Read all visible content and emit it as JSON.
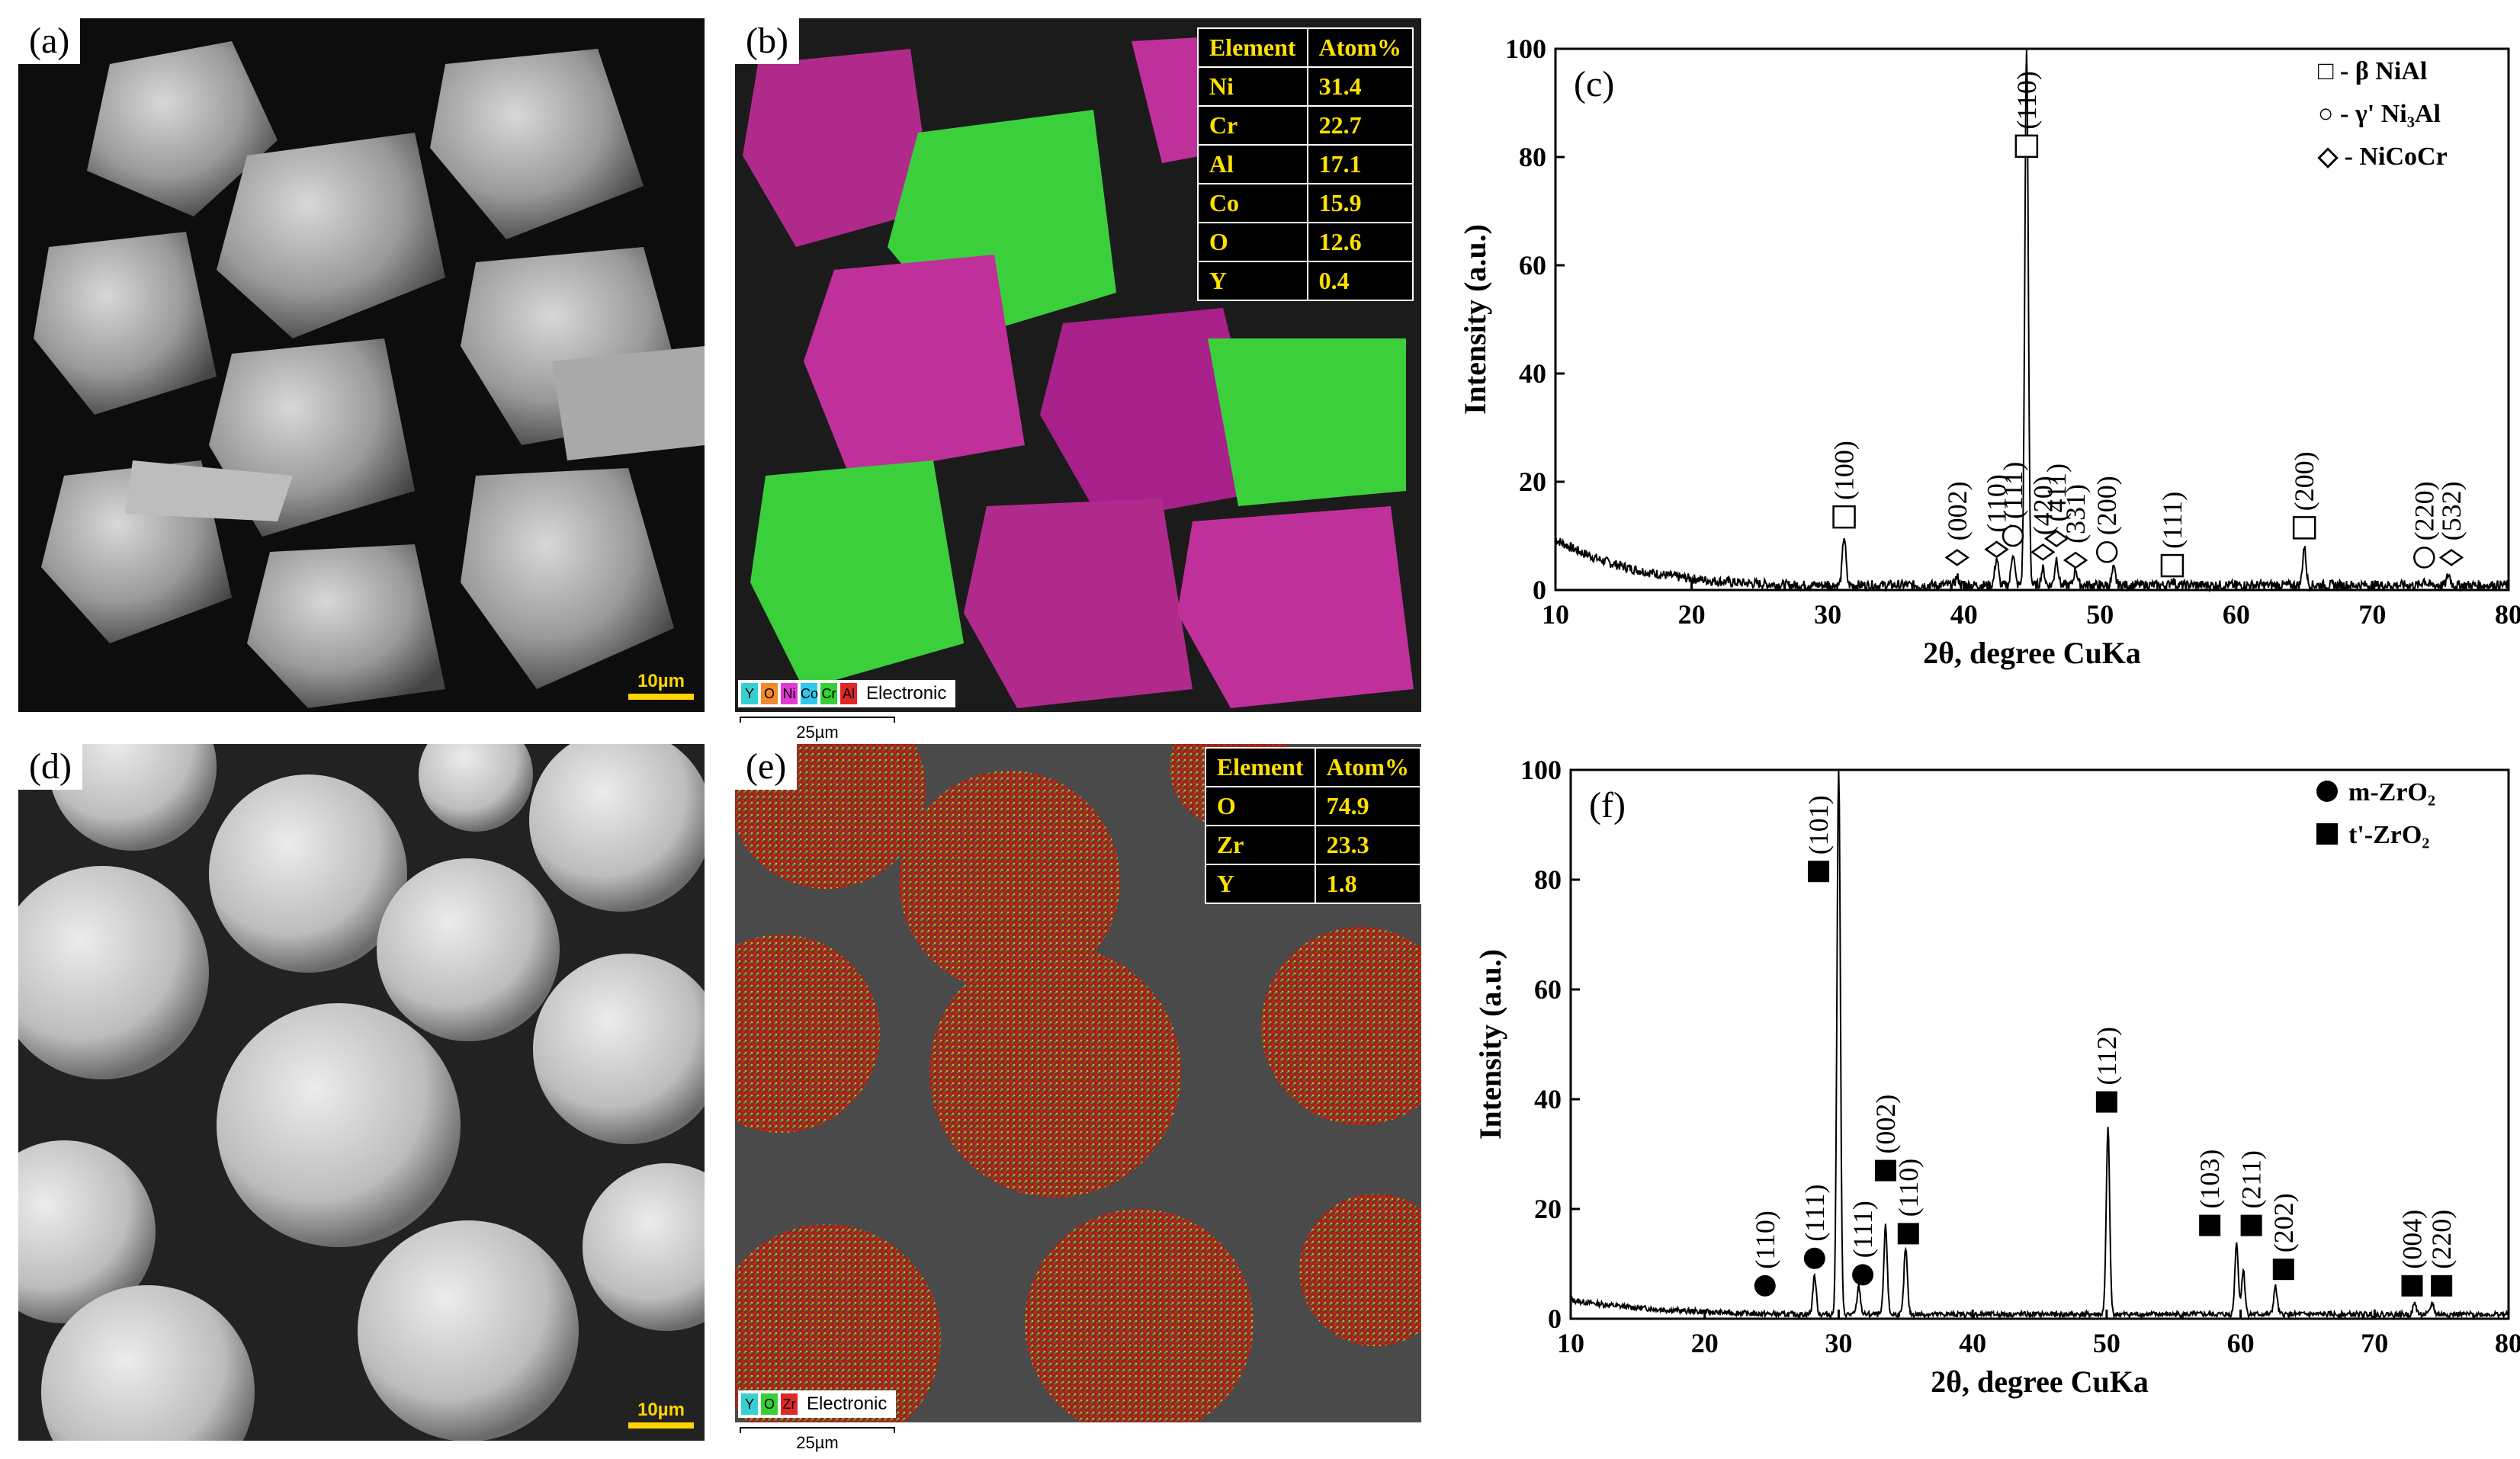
{
  "panels": {
    "a": {
      "label": "(a)",
      "scale": "10µm"
    },
    "b": {
      "label": "(b)",
      "table_header": [
        "Element",
        "Atom%"
      ],
      "rows": [
        [
          "Ni",
          "31.4"
        ],
        [
          "Cr",
          "22.7"
        ],
        [
          "Al",
          "17.1"
        ],
        [
          "Co",
          "15.9"
        ],
        [
          "O",
          "12.6"
        ],
        [
          "Y",
          "0.4"
        ]
      ],
      "chips": [
        "Y",
        "O",
        "Ni",
        "Co",
        "Cr",
        "Al"
      ],
      "electronic": "Electronic",
      "scale": "25µm"
    },
    "c": {
      "label": "(c)"
    },
    "d": {
      "label": "(d)",
      "scale": "10µm"
    },
    "e": {
      "label": "(e)",
      "table_header": [
        "Element",
        "Atom%"
      ],
      "rows": [
        [
          "O",
          "74.9"
        ],
        [
          "Zr",
          "23.3"
        ],
        [
          "Y",
          "1.8"
        ]
      ],
      "chips": [
        "Y",
        "O",
        "Zr"
      ],
      "electronic": "Electronic",
      "scale": "25µm"
    },
    "f": {
      "label": "(f)"
    }
  },
  "colors": {
    "scale_yellow": "#ffd400",
    "table_text": "#ffe000",
    "eds_green": "#3ccf3c",
    "eds_red": "#d61a1a",
    "eds_magenta": "#c0309a"
  },
  "chart_data": [
    {
      "type": "line",
      "panel": "c",
      "xlabel": "2θ, degree CuKa",
      "ylabel": "Intensity (a.u.)",
      "xlim": [
        10,
        80
      ],
      "ylim": [
        0,
        100
      ],
      "xticks": [
        10,
        20,
        30,
        40,
        50,
        60,
        70,
        80
      ],
      "yticks": [
        0,
        20,
        40,
        60,
        80,
        100
      ],
      "legend": [
        "□ - β NiAl",
        "○ - γ' Ni₃Al",
        "◇ - NiCoCr"
      ],
      "peaks": [
        {
          "x": 31.2,
          "h": 9
        },
        {
          "x": 39.5,
          "h": 1.5
        },
        {
          "x": 42.4,
          "h": 5
        },
        {
          "x": 43.6,
          "h": 6
        },
        {
          "x": 44.6,
          "h": 100
        },
        {
          "x": 45.8,
          "h": 3
        },
        {
          "x": 46.8,
          "h": 5
        },
        {
          "x": 48.2,
          "h": 3
        },
        {
          "x": 51.0,
          "h": 3
        },
        {
          "x": 55.3,
          "h": 1
        },
        {
          "x": 65.0,
          "h": 7
        },
        {
          "x": 73.8,
          "h": 1
        },
        {
          "x": 75.6,
          "h": 2
        }
      ],
      "annotations": [
        {
          "x": 31.2,
          "label": "(100)",
          "marker": "square",
          "y": 13.5
        },
        {
          "x": 39.5,
          "label": "(002)",
          "marker": "diamond",
          "y": 6
        },
        {
          "x": 42.4,
          "label": "(110)",
          "marker": "diamond",
          "y": 7.5
        },
        {
          "x": 43.6,
          "label": "(111)",
          "marker": "circle",
          "y": 10
        },
        {
          "x": 44.6,
          "label": "(110)",
          "marker": "square",
          "y": 82
        },
        {
          "x": 45.8,
          "label": "(420)",
          "marker": "diamond",
          "y": 7
        },
        {
          "x": 46.8,
          "label": "(411)",
          "marker": "diamond",
          "y": 9.5
        },
        {
          "x": 48.2,
          "label": "(331)",
          "marker": "diamond",
          "y": 5.5
        },
        {
          "x": 50.5,
          "label": "(200)",
          "marker": "circle",
          "y": 7
        },
        {
          "x": 55.3,
          "label": "(111)",
          "marker": "square",
          "y": 4.5
        },
        {
          "x": 65.0,
          "label": "(200)",
          "marker": "square",
          "y": 11.5
        },
        {
          "x": 73.8,
          "label": "(220)",
          "marker": "circle",
          "y": 6
        },
        {
          "x": 75.8,
          "label": "(532)",
          "marker": "diamond",
          "y": 6
        }
      ]
    },
    {
      "type": "line",
      "panel": "f",
      "xlabel": "2θ, degree CuKa",
      "ylabel": "Intensity (a.u.)",
      "xlim": [
        10,
        80
      ],
      "ylim": [
        0,
        100
      ],
      "xticks": [
        10,
        20,
        30,
        40,
        50,
        60,
        70,
        80
      ],
      "yticks": [
        0,
        20,
        40,
        60,
        80,
        100
      ],
      "legend": [
        "m-ZrO₂",
        "t'-ZrO₂"
      ],
      "peaks": [
        {
          "x": 28.2,
          "h": 7
        },
        {
          "x": 30.0,
          "h": 100
        },
        {
          "x": 31.5,
          "h": 5
        },
        {
          "x": 33.5,
          "h": 16
        },
        {
          "x": 35.0,
          "h": 12
        },
        {
          "x": 50.1,
          "h": 34
        },
        {
          "x": 59.7,
          "h": 13
        },
        {
          "x": 60.2,
          "h": 8
        },
        {
          "x": 62.6,
          "h": 5
        },
        {
          "x": 73.0,
          "h": 2
        },
        {
          "x": 74.3,
          "h": 2
        }
      ],
      "annotations": [
        {
          "x": 24.5,
          "label": "(110)",
          "marker": "filled-circle",
          "y": 6
        },
        {
          "x": 28.2,
          "label": "(111)",
          "marker": "filled-circle",
          "y": 11
        },
        {
          "x": 28.5,
          "label": "(101)",
          "marker": "filled-square",
          "y": 81.5
        },
        {
          "x": 31.8,
          "label": "(111)",
          "marker": "filled-circle",
          "y": 8
        },
        {
          "x": 33.5,
          "label": "(002)",
          "marker": "filled-square",
          "y": 27
        },
        {
          "x": 35.2,
          "label": "(110)",
          "marker": "filled-square",
          "y": 15.5
        },
        {
          "x": 50.0,
          "label": "(112)",
          "marker": "filled-square",
          "y": 39.5
        },
        {
          "x": 57.7,
          "label": "(103)",
          "marker": "filled-square",
          "y": 17
        },
        {
          "x": 60.8,
          "label": "(211)",
          "marker": "filled-square",
          "y": 17
        },
        {
          "x": 63.2,
          "label": "(202)",
          "marker": "filled-square",
          "y": 9
        },
        {
          "x": 72.8,
          "label": "(004)",
          "marker": "filled-square",
          "y": 6
        },
        {
          "x": 75.0,
          "label": "(220)",
          "marker": "filled-square",
          "y": 6
        }
      ]
    }
  ]
}
